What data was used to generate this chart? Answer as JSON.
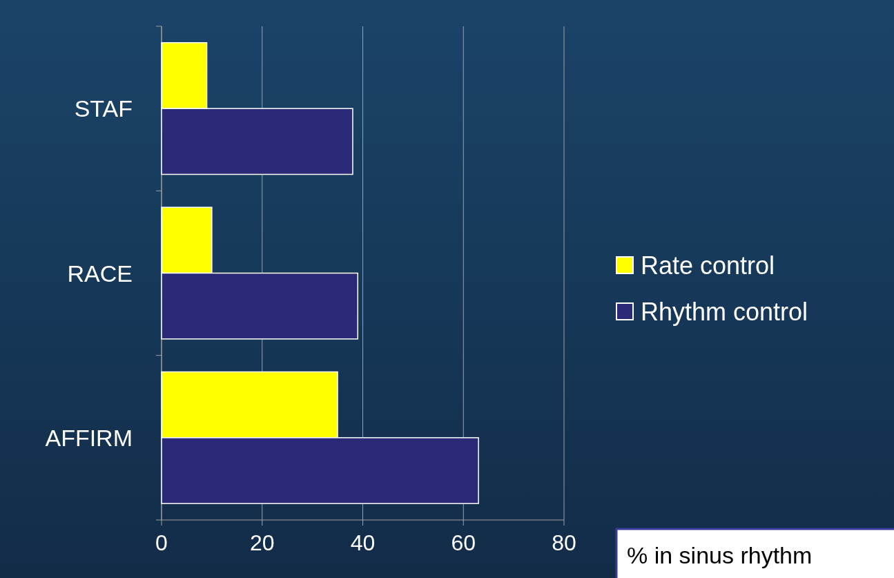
{
  "chart_data": {
    "type": "bar",
    "orientation": "horizontal",
    "categories": [
      "STAF",
      "RACE",
      "AFFIRM"
    ],
    "series": [
      {
        "name": "Rate control",
        "color": "#ffff00",
        "values": [
          9,
          10,
          35
        ]
      },
      {
        "name": "Rhythm control",
        "color": "#2b2a78",
        "values": [
          38,
          39,
          63
        ]
      }
    ],
    "xlim": [
      0,
      80
    ],
    "xticks": [
      0,
      20,
      40,
      60,
      80
    ],
    "grid": "x",
    "legend": "right",
    "xlabel": "% in sinus rhythm"
  }
}
